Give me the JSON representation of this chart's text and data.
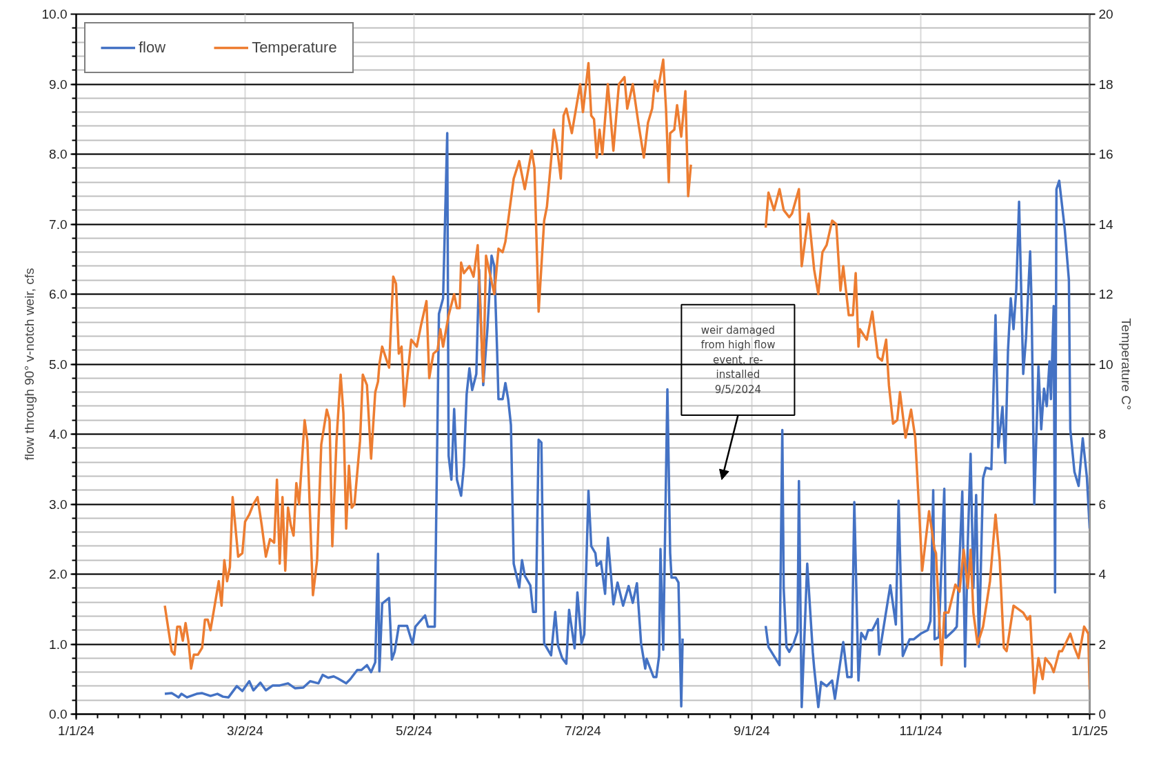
{
  "chart_data": {
    "type": "line",
    "xlabel": null,
    "ylabel": "flow through 90° v-notch weir, cfs",
    "y2label": "Temperature C°",
    "xlim": [
      "2024-01-01",
      "2025-01-01"
    ],
    "xticks": [
      {
        "value": "2024-01-01",
        "label": "1/1/24"
      },
      {
        "value": "2024-03-02",
        "label": "3/2/24"
      },
      {
        "value": "2024-05-02",
        "label": "5/2/24"
      },
      {
        "value": "2024-07-02",
        "label": "7/2/24"
      },
      {
        "value": "2024-09-01",
        "label": "9/1/24"
      },
      {
        "value": "2024-11-01",
        "label": "11/1/24"
      },
      {
        "value": "2025-01-01",
        "label": "1/1/25"
      }
    ],
    "ylim": [
      0,
      10
    ],
    "yticks": [
      {
        "value": 0,
        "label": "0.0"
      },
      {
        "value": 1,
        "label": "1.0"
      },
      {
        "value": 2,
        "label": "2.0"
      },
      {
        "value": 3,
        "label": "3.0"
      },
      {
        "value": 4,
        "label": "4.0"
      },
      {
        "value": 5,
        "label": "5.0"
      },
      {
        "value": 6,
        "label": "6.0"
      },
      {
        "value": 7,
        "label": "7.0"
      },
      {
        "value": 8,
        "label": "8.0"
      },
      {
        "value": 9,
        "label": "9.0"
      },
      {
        "value": 10,
        "label": "10.0"
      }
    ],
    "y2lim": [
      0,
      20
    ],
    "y2ticks": [
      0,
      2,
      4,
      6,
      8,
      10,
      12,
      14,
      16,
      18,
      20
    ],
    "grid": true,
    "legend": "top left",
    "annotations": [
      "weir damaged from high flow event, re-installed 9/5/2024"
    ],
    "series": [
      {
        "name": "flow",
        "color": "#4472c4",
        "x": [
          "2024-02-02",
          "2024-02-04T12:00",
          "2024-02-07",
          "2024-02-08",
          "2024-02-10",
          "2024-02-13T12:00",
          "2024-02-15T12:00",
          "2024-02-18T12:00",
          "2024-02-21",
          "2024-02-23",
          "2024-02-25",
          "2024-02-28",
          "2024-03-01",
          "2024-03-03T12:00",
          "2024-03-05",
          "2024-03-07T12:00",
          "2024-03-09T12:00",
          "2024-03-12",
          "2024-03-14T12:00",
          "2024-03-17T12:00",
          "2024-03-20",
          "2024-03-23",
          "2024-03-25T12:00",
          "2024-03-28T12:00",
          "2024-03-30",
          "2024-04-01",
          "2024-04-03",
          "2024-04-04T12:00",
          "2024-04-07T12:00",
          "2024-04-09",
          "2024-04-11T12:00",
          "2024-04-13",
          "2024-04-15",
          "2024-04-16T12:00",
          "2024-04-18",
          "2024-04-19",
          "2024-04-19T12:00",
          "2024-04-20T12:00",
          "2024-04-23",
          "2024-04-24",
          "2024-04-25",
          "2024-04-26T12:00",
          "2024-04-29T12:00",
          "2024-05-01T12:00",
          "2024-05-02T12:00",
          "2024-05-06",
          "2024-05-07",
          "2024-05-09T12:00",
          "2024-05-11",
          "2024-05-12T12:00",
          "2024-05-14",
          "2024-05-14T12:00",
          "2024-05-15T12:00",
          "2024-05-16T12:00",
          "2024-05-17T12:00",
          "2024-05-19",
          "2024-05-20",
          "2024-05-21",
          "2024-05-22",
          "2024-05-23",
          "2024-05-24T12:00",
          "2024-05-25T12:00",
          "2024-05-27",
          "2024-05-28T12:00",
          "2024-05-30",
          "2024-05-31",
          "2024-06-01",
          "2024-06-01T12:00",
          "2024-06-03",
          "2024-06-04",
          "2024-06-05",
          "2024-06-06",
          "2024-06-07",
          "2024-06-08",
          "2024-06-09",
          "2024-06-10",
          "2024-06-11",
          "2024-06-13",
          "2024-06-14",
          "2024-06-15",
          "2024-06-16",
          "2024-06-17",
          "2024-06-18",
          "2024-06-20T12:00",
          "2024-06-22",
          "2024-06-23",
          "2024-06-24T12:00",
          "2024-06-26",
          "2024-06-27",
          "2024-06-29",
          "2024-06-30",
          "2024-07-01T12:00",
          "2024-07-02T12:00",
          "2024-07-04",
          "2024-07-05",
          "2024-07-06T12:00",
          "2024-07-07",
          "2024-07-08T12:00",
          "2024-07-10",
          "2024-07-11",
          "2024-07-13",
          "2024-07-14T12:00",
          "2024-07-16T12:00",
          "2024-07-18T12:00",
          "2024-07-20",
          "2024-07-21T12:00",
          "2024-07-23",
          "2024-07-24T12:00",
          "2024-07-25",
          "2024-07-27T12:00",
          "2024-07-28T12:00",
          "2024-07-29T12:00",
          "2024-07-30",
          "2024-07-31",
          "2024-08-01T12:00",
          "2024-08-02T12:00",
          "2024-08-03",
          "2024-08-04T12:00",
          "2024-08-05T12:00",
          "2024-08-06T12:00",
          "2024-08-07",
          "2024-08-23",
          "2024-09-06",
          "2024-09-07",
          "2024-09-11",
          "2024-09-12",
          "2024-09-12T12:00",
          "2024-09-13T12:00",
          "2024-09-14T12:00",
          "2024-09-16",
          "2024-09-17T12:00",
          "2024-09-18",
          "2024-09-19",
          "2024-09-21",
          "2024-09-23",
          "2024-09-23T12:00",
          "2024-09-25",
          "2024-09-26",
          "2024-09-28",
          "2024-09-30",
          "2024-10-01",
          "2024-10-04",
          "2024-10-05T12:00",
          "2024-10-07",
          "2024-10-08",
          "2024-10-09T12:00",
          "2024-10-10T12:00",
          "2024-10-12",
          "2024-10-13",
          "2024-10-14T12:00",
          "2024-10-16T12:00",
          "2024-10-17",
          "2024-10-21",
          "2024-10-23",
          "2024-10-24",
          "2024-10-25T12:00",
          "2024-10-28",
          "2024-10-29T12:00",
          "2024-11-01",
          "2024-11-03T12:00",
          "2024-11-04T12:00",
          "2024-11-05T12:00",
          "2024-11-06",
          "2024-11-07T12:00",
          "2024-11-09T12:00",
          "2024-11-10",
          "2024-11-13",
          "2024-11-14",
          "2024-11-16",
          "2024-11-17",
          "2024-11-18",
          "2024-11-19",
          "2024-11-20",
          "2024-11-21",
          "2024-11-22",
          "2024-11-23T12:00",
          "2024-11-24T12:00",
          "2024-11-26T12:00",
          "2024-11-28",
          "2024-11-29",
          "2024-11-30T12:00",
          "2024-12-01T12:00",
          "2024-12-02T12:00",
          "2024-12-03T12:00",
          "2024-12-04T12:00",
          "2024-12-05T12:00",
          "2024-12-06T12:00",
          "2024-12-08",
          "2024-12-09",
          "2024-12-10T12:00",
          "2024-12-11",
          "2024-12-12",
          "2024-12-13T12:00",
          "2024-12-14T12:00",
          "2024-12-15T12:00",
          "2024-12-16T12:00",
          "2024-12-17T12:00",
          "2024-12-18",
          "2024-12-19",
          "2024-12-19T12:00",
          "2024-12-20",
          "2024-12-21",
          "2024-12-23",
          "2024-12-24T12:00",
          "2024-12-25",
          "2024-12-26T12:00",
          "2024-12-28",
          "2024-12-29T12:00",
          "2024-12-31",
          "2025-01-01"
        ],
        "values": [
          0.29,
          0.3,
          0.24,
          0.29,
          0.24,
          0.29,
          0.3,
          0.26,
          0.29,
          0.25,
          0.24,
          0.4,
          0.33,
          0.47,
          0.34,
          0.45,
          0.34,
          0.41,
          0.41,
          0.44,
          0.37,
          0.38,
          0.47,
          0.44,
          0.56,
          0.52,
          0.54,
          0.51,
          0.44,
          0.5,
          0.63,
          0.63,
          0.7,
          0.6,
          0.74,
          2.29,
          0.61,
          1.58,
          1.66,
          0.78,
          0.89,
          1.26,
          1.26,
          1.0,
          1.25,
          1.41,
          1.25,
          1.25,
          5.72,
          5.94,
          8.3,
          3.69,
          3.35,
          4.36,
          3.35,
          3.12,
          3.54,
          4.57,
          4.94,
          4.63,
          4.86,
          6.35,
          4.7,
          5.5,
          6.55,
          6.4,
          5.2,
          4.5,
          4.5,
          4.73,
          4.5,
          4.13,
          2.15,
          1.98,
          1.81,
          2.2,
          1.98,
          1.84,
          1.46,
          1.46,
          3.92,
          3.88,
          1.01,
          0.84,
          1.46,
          0.98,
          0.8,
          0.72,
          1.49,
          0.94,
          1.74,
          1.01,
          1.14,
          3.19,
          2.4,
          2.3,
          2.12,
          2.18,
          1.72,
          2.52,
          1.57,
          1.88,
          1.55,
          1.83,
          1.59,
          1.87,
          1.01,
          0.65,
          0.79,
          0.53,
          0.53,
          0.83,
          2.36,
          0.92,
          4.64,
          2.3,
          1.95,
          1.95,
          1.88,
          0.11,
          1.08,
          null,
          1.26,
          0.96,
          0.7,
          4.06,
          1.8,
          0.96,
          0.89,
          1.0,
          1.18,
          3.33,
          0.1,
          2.15,
          0.89,
          0.66,
          0.1,
          0.46,
          0.4,
          0.48,
          0.22,
          1.03,
          0.53,
          0.53,
          3.03,
          0.48,
          1.16,
          1.07,
          1.2,
          1.2,
          1.36,
          0.85,
          1.84,
          1.28,
          3.05,
          0.83,
          1.07,
          1.07,
          1.15,
          1.2,
          1.33,
          3.2,
          1.07,
          1.1,
          3.22,
          1.09,
          1.2,
          1.25,
          3.18,
          0.68,
          2.47,
          3.72,
          1.8,
          3.13,
          0.96,
          3.37,
          3.52,
          3.5,
          5.7,
          3.81,
          4.39,
          3.59,
          5.19,
          5.94,
          5.5,
          6.07,
          7.32,
          4.86,
          5.37,
          6.61,
          5.9,
          3.0,
          4.97,
          4.07,
          4.65,
          4.4,
          5.04,
          4.5,
          5.83,
          1.74,
          7.5,
          7.62,
          6.93,
          6.2,
          4.07,
          3.46,
          3.26,
          3.94,
          3.38,
          2.65
        ]
      },
      {
        "name": "Temperature",
        "color": "#ed7d31",
        "axis": "y2",
        "x": [
          "2024-02-02",
          "2024-02-04T12:00",
          "2024-02-05T12:00",
          "2024-02-06T12:00",
          "2024-02-07T12:00",
          "2024-02-08T12:00",
          "2024-02-09T12:00",
          "2024-02-10T12:00",
          "2024-02-11T12:00",
          "2024-02-12T12:00",
          "2024-02-14",
          "2024-02-15T12:00",
          "2024-02-16T12:00",
          "2024-02-17T12:00",
          "2024-02-18T12:00",
          "2024-02-20",
          "2024-02-21T12:00",
          "2024-02-22T12:00",
          "2024-02-23T12:00",
          "2024-02-24T12:00",
          "2024-02-25T12:00",
          "2024-02-26T12:00",
          "2024-02-28T12:00",
          "2024-03-01",
          "2024-03-02",
          "2024-03-03T12:00",
          "2024-03-05",
          "2024-03-06T12:00",
          "2024-03-08",
          "2024-03-09T12:00",
          "2024-03-11",
          "2024-03-12T12:00",
          "2024-03-13T12:00",
          "2024-03-14T12:00",
          "2024-03-15T12:00",
          "2024-03-16T12:00",
          "2024-03-17T12:00",
          "2024-03-18T12:00",
          "2024-03-19T12:00",
          "2024-03-20T12:00",
          "2024-03-21T12:00",
          "2024-03-23T12:00",
          "2024-03-24T12:00",
          "2024-03-26T12:00",
          "2024-03-28",
          "2024-03-29T12:00",
          "2024-03-31T12:00",
          "2024-04-01T12:00",
          "2024-04-02T12:00",
          "2024-04-04",
          "2024-04-05T12:00",
          "2024-04-06T12:00",
          "2024-04-07T12:00",
          "2024-04-08T12:00",
          "2024-04-09T12:00",
          "2024-04-10T12:00",
          "2024-04-12T12:00",
          "2024-04-13T12:00",
          "2024-04-15",
          "2024-04-16T12:00",
          "2024-04-18",
          "2024-04-19",
          "2024-04-19T12:00",
          "2024-04-20T12:00",
          "2024-04-23",
          "2024-04-24T12:00",
          "2024-04-25T12:00",
          "2024-04-26T12:00",
          "2024-04-27T12:00",
          "2024-04-28T12:00",
          "2024-05-01",
          "2024-05-03",
          "2024-05-04T12:00",
          "2024-05-06T12:00",
          "2024-05-07T12:00",
          "2024-05-09",
          "2024-05-10T12:00",
          "2024-05-11T12:00",
          "2024-05-12T12:00",
          "2024-05-14T12:00",
          "2024-05-16T12:00",
          "2024-05-17T12:00",
          "2024-05-18T12:00",
          "2024-05-19",
          "2024-05-20",
          "2024-05-22",
          "2024-05-23T12:00",
          "2024-05-25",
          "2024-05-27",
          "2024-05-28",
          "2024-05-31",
          "2024-06-01T12:00",
          "2024-06-03",
          "2024-06-04",
          "2024-06-05T12:00",
          "2024-06-07",
          "2024-06-09",
          "2024-06-11",
          "2024-06-13T12:00",
          "2024-06-14T12:00",
          "2024-06-15",
          "2024-06-16",
          "2024-06-18",
          "2024-06-19",
          "2024-06-21T12:00",
          "2024-06-22T12:00",
          "2024-06-24",
          "2024-06-25",
          "2024-06-26",
          "2024-06-28",
          "2024-06-29T12:00",
          "2024-07-01",
          "2024-07-02",
          "2024-07-04",
          "2024-07-05",
          "2024-07-06",
          "2024-07-07",
          "2024-07-08",
          "2024-07-09",
          "2024-07-11",
          "2024-07-13",
          "2024-07-15",
          "2024-07-17",
          "2024-07-18",
          "2024-07-20",
          "2024-07-22",
          "2024-07-24",
          "2024-07-25T12:00",
          "2024-07-27",
          "2024-07-28",
          "2024-07-29",
          "2024-07-31",
          "2024-08-01",
          "2024-08-02",
          "2024-08-02T12:00",
          "2024-08-04",
          "2024-08-05",
          "2024-08-06T12:00",
          "2024-08-08",
          "2024-08-09",
          "2024-08-10",
          "2024-08-23",
          "2024-09-06",
          "2024-09-07",
          "2024-09-09",
          "2024-09-11",
          "2024-09-12T12:00",
          "2024-09-14T12:00",
          "2024-09-15T12:00",
          "2024-09-18",
          "2024-09-19",
          "2024-09-21T12:00",
          "2024-09-23T12:00",
          "2024-09-25",
          "2024-09-26T12:00",
          "2024-09-28",
          "2024-09-30",
          "2024-10-01T12:00",
          "2024-10-03",
          "2024-10-04",
          "2024-10-06",
          "2024-10-07T12:00",
          "2024-10-08T12:00",
          "2024-10-09T12:00",
          "2024-10-10",
          "2024-10-12T12:00",
          "2024-10-14T12:00",
          "2024-10-16T12:00",
          "2024-10-18",
          "2024-10-19T12:00",
          "2024-10-20T12:00",
          "2024-10-22",
          "2024-10-23T12:00",
          "2024-10-24T12:00",
          "2024-10-26T12:00",
          "2024-10-28T12:00",
          "2024-10-30",
          "2024-10-31T12:00",
          "2024-11-01T12:00",
          "2024-11-04",
          "2024-11-06",
          "2024-11-06T12:00",
          "2024-11-08T12:00",
          "2024-11-09T12:00",
          "2024-11-11",
          "2024-11-13T12:00",
          "2024-11-15",
          "2024-11-16T12:00",
          "2024-11-18",
          "2024-11-19",
          "2024-11-20",
          "2024-11-21T12:00",
          "2024-11-23T12:00",
          "2024-11-26",
          "2024-11-28",
          "2024-11-29T12:00",
          "2024-12-01",
          "2024-12-02",
          "2024-12-04T12:00",
          "2024-12-08",
          "2024-12-09T12:00",
          "2024-12-10T12:00",
          "2024-12-12",
          "2024-12-13T12:00",
          "2024-12-15",
          "2024-12-16",
          "2024-12-18",
          "2024-12-19",
          "2024-12-21",
          "2024-12-22",
          "2024-12-25",
          "2024-12-26T12:00",
          "2024-12-28",
          "2024-12-30",
          "2024-12-31T12:00",
          "2025-01-01"
        ],
        "values": [
          3.1,
          1.8,
          1.7,
          2.5,
          2.5,
          2.1,
          2.6,
          2.1,
          1.3,
          1.7,
          1.7,
          1.9,
          2.7,
          2.7,
          2.4,
          3.1,
          3.8,
          3.1,
          4.4,
          3.8,
          4.2,
          6.2,
          4.5,
          4.6,
          5.5,
          5.7,
          6.0,
          6.2,
          5.4,
          4.5,
          5.0,
          4.9,
          6.7,
          4.3,
          6.2,
          4.1,
          5.9,
          5.4,
          5.1,
          6.6,
          6.0,
          8.4,
          7.8,
          3.4,
          4.4,
          7.7,
          8.7,
          8.4,
          4.8,
          7.8,
          9.7,
          8.6,
          5.3,
          7.1,
          5.9,
          6.0,
          7.8,
          9.7,
          9.4,
          7.3,
          9.2,
          9.5,
          10.0,
          10.5,
          9.9,
          12.5,
          12.3,
          10.3,
          10.5,
          8.8,
          10.7,
          10.5,
          11.1,
          11.8,
          9.6,
          10.3,
          10.4,
          11.0,
          10.5,
          11.4,
          12.0,
          11.6,
          11.6,
          12.9,
          12.6,
          12.8,
          12.5,
          13.4,
          9.5,
          13.1,
          12.0,
          13.3,
          13.2,
          13.5,
          14.4,
          15.3,
          15.8,
          15.0,
          16.1,
          15.6,
          14.2,
          11.5,
          14.1,
          14.5,
          16.7,
          16.3,
          15.3,
          17.1,
          17.3,
          16.6,
          17.3,
          18.0,
          17.2,
          18.6,
          17.1,
          17.0,
          15.9,
          16.7,
          16.0,
          18.0,
          16.1,
          18.0,
          18.2,
          17.3,
          18.0,
          16.9,
          15.9,
          16.9,
          17.3,
          18.1,
          17.8,
          18.7,
          17.3,
          15.2,
          16.6,
          16.7,
          17.4,
          16.5,
          17.8,
          14.8,
          15.7,
          null,
          13.9,
          14.9,
          14.4,
          15.0,
          14.4,
          14.2,
          14.3,
          15.0,
          12.8,
          14.3,
          12.7,
          12.0,
          13.2,
          13.4,
          14.1,
          14.0,
          12.1,
          12.8,
          11.4,
          11.4,
          12.6,
          10.5,
          11.0,
          10.7,
          11.5,
          10.2,
          10.1,
          10.7,
          9.4,
          8.3,
          8.4,
          9.2,
          7.9,
          8.7,
          7.9,
          5.7,
          4.1,
          5.8,
          4.7,
          4.6,
          1.4,
          2.9,
          2.9,
          3.7,
          3.5,
          4.7,
          3.6,
          4.7,
          2.9,
          2.0,
          2.5,
          3.8,
          5.7,
          4.4,
          1.9,
          1.8,
          3.1,
          2.9,
          2.7,
          2.8,
          0.6,
          1.6,
          1.0,
          1.6,
          1.4,
          1.2,
          1.8,
          1.8,
          2.3,
          1.9,
          1.6,
          2.5,
          2.3,
          0.7
        ]
      }
    ]
  }
}
